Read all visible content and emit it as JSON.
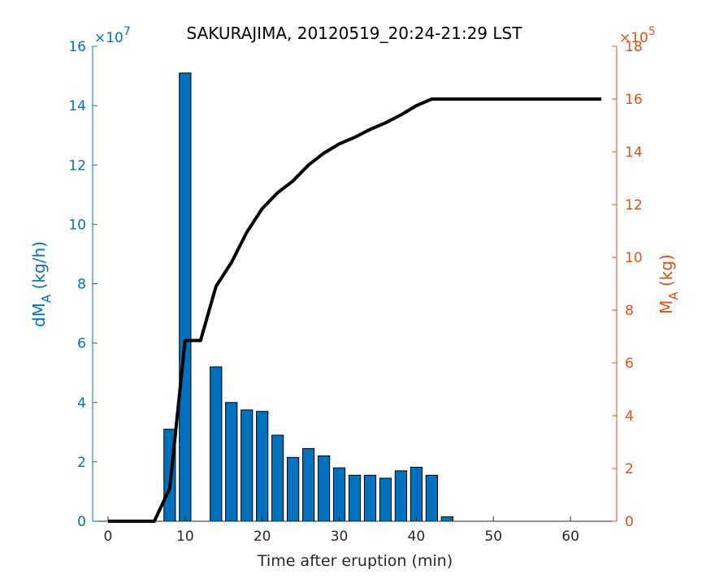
{
  "chart_data": {
    "type": "bar",
    "title": "SAKURAJIMA, 20120519_20:24-21:29 LST",
    "xlabel": "Time after eruption (min)",
    "xlim": [
      -2,
      66
    ],
    "xticks": [
      0,
      10,
      20,
      30,
      40,
      50,
      60
    ],
    "grid": false,
    "left_axis": {
      "label_main": "dM",
      "label_sub": "A",
      "label_unit": " (kg/h)",
      "multiplier_prefix": "×10",
      "multiplier_exp": "7",
      "ylim": [
        0,
        16
      ],
      "ticks": [
        0,
        2,
        4,
        6,
        8,
        10,
        12,
        14,
        16
      ],
      "color": "#0072BD"
    },
    "right_axis": {
      "label_main": "M",
      "label_sub": "A",
      "label_unit": " (kg)",
      "multiplier_prefix": "×10",
      "multiplier_exp": "5",
      "ylim": [
        0,
        18
      ],
      "ticks": [
        0,
        2,
        4,
        6,
        8,
        10,
        12,
        14,
        16,
        18
      ],
      "color": "#D95319"
    },
    "series": [
      {
        "kind": "bar",
        "axis": "left",
        "color": "#0072BD",
        "bar_width": 1.5,
        "x": [
          8,
          10,
          14,
          16,
          18,
          20,
          22,
          24,
          26,
          28,
          30,
          32,
          34,
          36,
          38,
          40,
          42,
          44
        ],
        "values": [
          3.1,
          15.1,
          5.2,
          4.0,
          3.75,
          3.7,
          2.9,
          2.15,
          2.45,
          2.2,
          1.8,
          1.55,
          1.55,
          1.45,
          1.7,
          1.82,
          1.55,
          0.15
        ]
      },
      {
        "kind": "line",
        "axis": "right",
        "color": "#000000",
        "x": [
          0,
          2,
          4,
          6,
          8,
          10,
          12,
          14,
          16,
          18,
          20,
          22,
          24,
          26,
          28,
          30,
          32,
          34,
          36,
          38,
          40,
          42,
          44,
          46,
          48,
          50,
          52,
          54,
          56,
          58,
          60,
          62,
          64
        ],
        "y": [
          0,
          0,
          0,
          0,
          1.25,
          6.85,
          6.85,
          8.9,
          9.8,
          10.95,
          11.85,
          12.45,
          12.9,
          13.5,
          13.95,
          14.3,
          14.55,
          14.85,
          15.1,
          15.4,
          15.75,
          16.0,
          16.0,
          16.0,
          16.0,
          16.0,
          16.0,
          16.0,
          16.0,
          16.0,
          16.0,
          16.0,
          16.0
        ]
      }
    ]
  }
}
